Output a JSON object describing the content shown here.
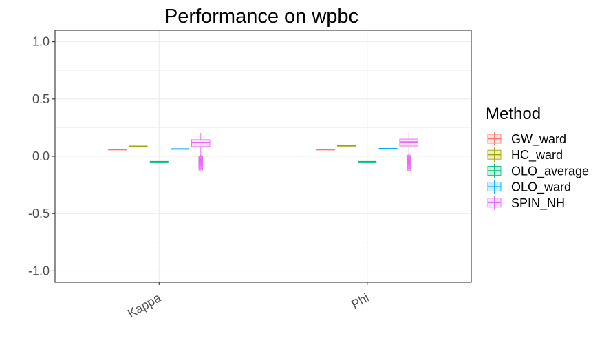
{
  "chart_data": {
    "type": "boxplot",
    "title": "Performance on wpbc",
    "xlabel": "",
    "ylabel": "",
    "categories": [
      "Kappa",
      "Phi"
    ],
    "ylim": [
      -1.1,
      1.1
    ],
    "yticks": [
      1.0,
      0.5,
      0.0,
      -0.5,
      -1.0
    ],
    "ytick_labels": [
      "1.0",
      "0.5",
      "0.0",
      "-0.5",
      "-1.0"
    ],
    "grid": true,
    "legend": {
      "title": "Method",
      "position": "right"
    },
    "series": [
      {
        "name": "GW_ward",
        "color": "#F8766D",
        "boxes": [
          {
            "category": "Kappa",
            "min": 0.058,
            "q1": 0.058,
            "median": 0.058,
            "q3": 0.058,
            "max": 0.058,
            "outliers": []
          },
          {
            "category": "Phi",
            "min": 0.058,
            "q1": 0.058,
            "median": 0.058,
            "q3": 0.058,
            "max": 0.058,
            "outliers": []
          }
        ]
      },
      {
        "name": "HC_ward",
        "color": "#A3A500",
        "boxes": [
          {
            "category": "Kappa",
            "min": 0.087,
            "q1": 0.087,
            "median": 0.087,
            "q3": 0.087,
            "max": 0.087,
            "outliers": []
          },
          {
            "category": "Phi",
            "min": 0.092,
            "q1": 0.092,
            "median": 0.092,
            "q3": 0.092,
            "max": 0.092,
            "outliers": []
          }
        ]
      },
      {
        "name": "OLO_average",
        "color": "#00BF7D",
        "boxes": [
          {
            "category": "Kappa",
            "min": -0.047,
            "q1": -0.047,
            "median": -0.047,
            "q3": -0.047,
            "max": -0.047,
            "outliers": []
          },
          {
            "category": "Phi",
            "min": -0.047,
            "q1": -0.047,
            "median": -0.047,
            "q3": -0.047,
            "max": -0.047,
            "outliers": []
          }
        ]
      },
      {
        "name": "OLO_ward",
        "color": "#00B0F6",
        "boxes": [
          {
            "category": "Kappa",
            "min": 0.064,
            "q1": 0.064,
            "median": 0.064,
            "q3": 0.064,
            "max": 0.064,
            "outliers": []
          },
          {
            "category": "Phi",
            "min": 0.066,
            "q1": 0.066,
            "median": 0.066,
            "q3": 0.066,
            "max": 0.066,
            "outliers": []
          }
        ]
      },
      {
        "name": "SPIN_NH",
        "color": "#E76BF3",
        "boxes": [
          {
            "category": "Kappa",
            "min": -0.005,
            "q1": 0.085,
            "median": 0.12,
            "q3": 0.145,
            "max": 0.205,
            "outliers": [
              -0.01,
              -0.02,
              -0.03,
              -0.04,
              -0.05,
              -0.06,
              -0.075,
              -0.09,
              -0.11
            ]
          },
          {
            "category": "Phi",
            "min": 0.0,
            "q1": 0.09,
            "median": 0.125,
            "q3": 0.15,
            "max": 0.21,
            "outliers": [
              -0.005,
              -0.015,
              -0.025,
              -0.035,
              -0.05,
              -0.06,
              -0.075,
              -0.09,
              -0.11
            ]
          }
        ]
      }
    ]
  }
}
